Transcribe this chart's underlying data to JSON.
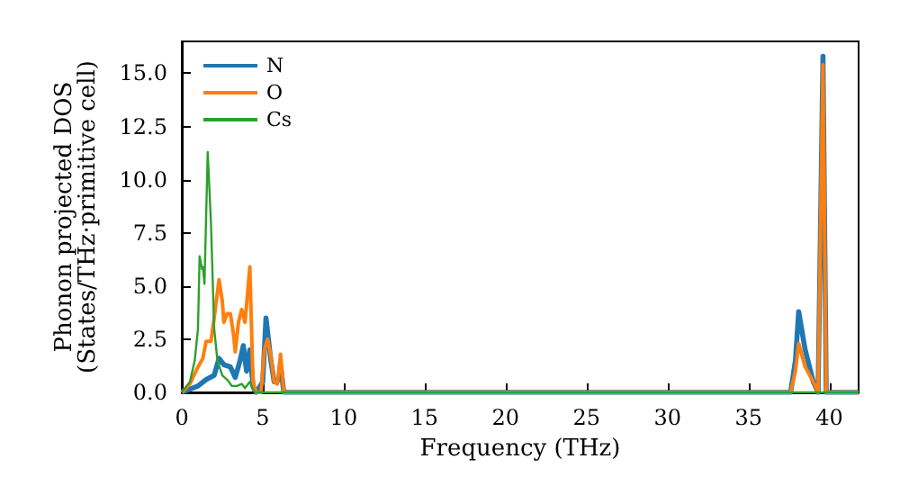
{
  "chart_data": {
    "type": "line",
    "xlabel": "Frequency (THz)",
    "ylabel": "Phonon projected DOS\n(States/THz·primitive cell)",
    "xlim": [
      0,
      41.8
    ],
    "ylim": [
      0,
      16.5
    ],
    "xticks": [
      0,
      5,
      10,
      15,
      20,
      25,
      30,
      35,
      40
    ],
    "yticks": [
      {
        "value": 0,
        "label": "0.0"
      },
      {
        "value": 2.5,
        "label": "2.5"
      },
      {
        "value": 5,
        "label": "5.0"
      },
      {
        "value": 7.5,
        "label": "7.5"
      },
      {
        "value": 10,
        "label": "10.0"
      },
      {
        "value": 12.5,
        "label": "12.5"
      },
      {
        "value": 15,
        "label": "15.0"
      }
    ],
    "grid": false,
    "legend": "top left",
    "marker": "none",
    "line_style": "solid",
    "series": [
      {
        "name": "N",
        "color": "#1f77b4",
        "x": [
          0,
          1.0,
          1.5,
          2.0,
          2.3,
          2.6,
          3.0,
          3.3,
          3.6,
          3.8,
          4.0,
          4.2,
          4.4,
          4.6,
          5.0,
          5.2,
          5.5,
          5.7,
          6.0,
          6.1,
          6.3,
          37.6,
          37.9,
          38.1,
          38.5,
          39.0,
          39.3,
          39.6,
          39.8,
          41.8
        ],
        "values": [
          0,
          0.3,
          0.6,
          0.8,
          1.6,
          1.3,
          1.2,
          0.7,
          1.5,
          2.2,
          1.0,
          2.0,
          0.3,
          0,
          0.5,
          3.5,
          1.5,
          0.5,
          0.6,
          1.3,
          0,
          0,
          1.5,
          3.8,
          2.0,
          0.5,
          0,
          15.8,
          0,
          0
        ]
      },
      {
        "name": "O",
        "color": "#ff7f0e",
        "x": [
          0,
          0.5,
          1.0,
          1.3,
          1.5,
          1.8,
          2.0,
          2.3,
          2.5,
          2.6,
          2.8,
          3.0,
          3.2,
          3.3,
          3.5,
          3.7,
          3.9,
          4.0,
          4.2,
          4.4,
          4.6,
          4.9,
          5.1,
          5.3,
          5.5,
          5.7,
          5.9,
          6.1,
          6.3,
          37.6,
          37.9,
          38.1,
          38.5,
          39.0,
          39.3,
          39.6,
          39.8,
          41.8
        ],
        "values": [
          0,
          0.4,
          1.2,
          1.6,
          2.4,
          2.4,
          3.5,
          5.3,
          4.3,
          3.3,
          3.7,
          3.7,
          2.7,
          1.9,
          3.3,
          3.9,
          3.3,
          4.1,
          5.9,
          0.5,
          0,
          0,
          2.0,
          2.5,
          1.7,
          0.5,
          0.4,
          1.8,
          0,
          0,
          1.0,
          2.3,
          1.2,
          0.5,
          0,
          15.4,
          0,
          0
        ]
      },
      {
        "name": "Cs",
        "color": "#2ca02c",
        "x": [
          0,
          0.5,
          0.8,
          1.0,
          1.1,
          1.25,
          1.3,
          1.4,
          1.6,
          1.8,
          2.0,
          2.2,
          2.5,
          2.8,
          3.1,
          3.4,
          3.7,
          3.9,
          4.2,
          4.4,
          4.6,
          41.8
        ],
        "values": [
          0,
          0.5,
          1.5,
          3,
          6.4,
          5.8,
          5.9,
          5.1,
          11.3,
          8,
          3,
          1.5,
          0.8,
          0.6,
          0.3,
          0.3,
          0.4,
          0.2,
          0.5,
          0.1,
          0,
          0
        ]
      }
    ]
  }
}
